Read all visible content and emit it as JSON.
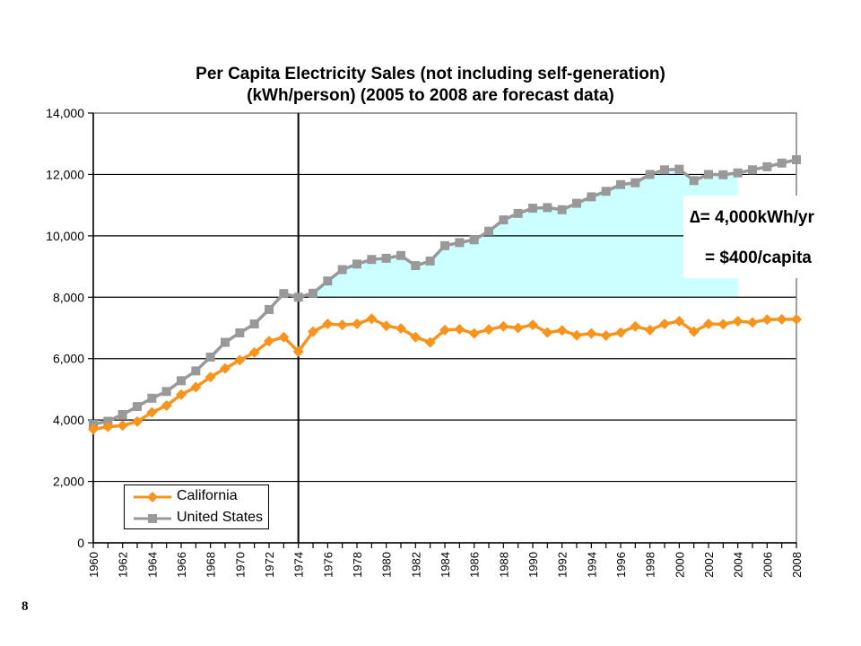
{
  "page": {
    "number": "8"
  },
  "chart_data": {
    "type": "line",
    "title": "Per Capita Electricity Sales (not including self-generation)",
    "subtitle": "(kWh/person) (2005 to 2008 are forecast data)",
    "x": [
      1960,
      1961,
      1962,
      1963,
      1964,
      1965,
      1966,
      1967,
      1968,
      1969,
      1970,
      1971,
      1972,
      1973,
      1974,
      1975,
      1976,
      1977,
      1978,
      1979,
      1980,
      1981,
      1982,
      1983,
      1984,
      1985,
      1986,
      1987,
      1988,
      1989,
      1990,
      1991,
      1992,
      1993,
      1994,
      1995,
      1996,
      1997,
      1998,
      1999,
      2000,
      2001,
      2002,
      2003,
      2004,
      2005,
      2006,
      2007,
      2008
    ],
    "x_tick_labels": [
      "1960",
      "1962",
      "1964",
      "1966",
      "1968",
      "1970",
      "1972",
      "1974",
      "1976",
      "1978",
      "1980",
      "1982",
      "1984",
      "1986",
      "1988",
      "1990",
      "1992",
      "1994",
      "1996",
      "1998",
      "2000",
      "2002",
      "2004",
      "2006",
      "2008"
    ],
    "y_tick_labels": [
      "0",
      "2,000",
      "4,000",
      "6,000",
      "8,000",
      "10,000",
      "12,000",
      "14,000"
    ],
    "ylim": [
      0,
      14000
    ],
    "xlim": [
      1960,
      2008
    ],
    "grid": "horizontal",
    "legend_position": "bottom-left",
    "series": [
      {
        "name": "California",
        "color": "#f7941d",
        "marker": "diamond",
        "values": [
          3700,
          3780,
          3820,
          3950,
          4250,
          4470,
          4830,
          5070,
          5400,
          5680,
          5950,
          6200,
          6570,
          6700,
          6230,
          6880,
          7130,
          7100,
          7130,
          7300,
          7070,
          6980,
          6700,
          6530,
          6930,
          6960,
          6820,
          6950,
          7050,
          7000,
          7100,
          6850,
          6920,
          6760,
          6820,
          6750,
          6850,
          7050,
          6930,
          7130,
          7220,
          6880,
          7130,
          7120,
          7220,
          7180,
          7270,
          7280,
          7280
        ]
      },
      {
        "name": "United States",
        "color": "#999999",
        "marker": "square",
        "values": [
          3860,
          3960,
          4180,
          4440,
          4710,
          4930,
          5280,
          5600,
          6050,
          6530,
          6840,
          7130,
          7600,
          8120,
          8000,
          8130,
          8530,
          8900,
          9080,
          9230,
          9270,
          9360,
          9030,
          9180,
          9680,
          9780,
          9870,
          10150,
          10520,
          10730,
          10900,
          10920,
          10850,
          11060,
          11270,
          11450,
          11670,
          11730,
          12000,
          12150,
          12170,
          11800,
          12000,
          11990,
          12050,
          12150,
          12250,
          12370,
          12480
        ]
      }
    ],
    "shaded_region": {
      "from_x": 1974,
      "to_x": 2004,
      "color": "#ccffff",
      "between": [
        "California",
        "United States"
      ],
      "y_min": 8000
    },
    "reference_line": {
      "x": 1974,
      "color": "#000000"
    },
    "annotation": {
      "line1": "∆= 4,000kWh/yr",
      "line2": "= $400/capita"
    },
    "colors": {
      "plot_border": "#808080",
      "grid": "#000000",
      "axis": "#000000"
    }
  }
}
